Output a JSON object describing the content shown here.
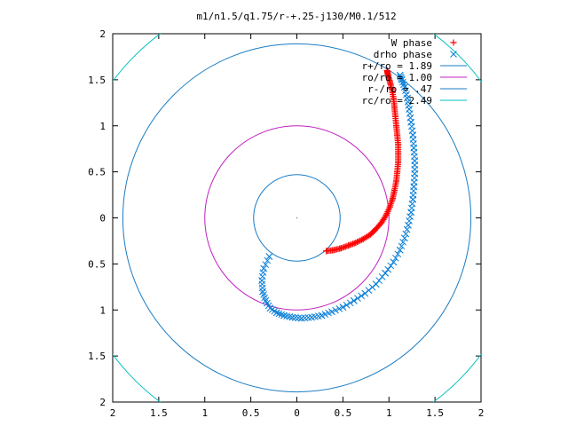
{
  "chart_data": {
    "type": "scatter",
    "title": "m1/n1.5/q1.75/r-+.25-j130/M0.1/512",
    "xlim": [
      -2,
      2
    ],
    "ylim": [
      -2,
      2
    ],
    "x_ticks": [
      -2,
      -1.5,
      -1,
      -0.5,
      0,
      0.5,
      1,
      1.5,
      2
    ],
    "y_ticks": [
      -2,
      -1.5,
      -1,
      -0.5,
      0,
      0.5,
      1,
      1.5,
      2
    ],
    "x_tick_labels": [
      "2",
      "1.5",
      "1",
      "0.5",
      "0",
      "0.5",
      "1",
      "1.5",
      "2"
    ],
    "y_tick_labels": [
      "2",
      "1.5",
      "1",
      "0.5",
      "0",
      "0.5",
      "1",
      "1.5",
      "2"
    ],
    "grid": false,
    "legend_position": "top-right",
    "series": [
      {
        "name": "W phase",
        "kind": "points",
        "marker": "plus",
        "color": "#ff0000",
        "x": [
          0.32,
          0.4,
          0.48,
          0.56,
          0.64,
          0.72,
          0.8,
          0.86,
          0.92,
          0.97,
          1.01,
          1.04,
          1.06,
          1.08,
          1.09,
          1.1,
          1.1,
          1.1,
          1.09,
          1.08,
          1.07,
          1.06,
          1.05,
          1.03,
          1.01,
          0.99,
          0.98
        ],
        "y": [
          -0.36,
          -0.35,
          -0.33,
          -0.3,
          -0.27,
          -0.23,
          -0.18,
          -0.12,
          -0.05,
          0.03,
          0.12,
          0.21,
          0.3,
          0.4,
          0.5,
          0.6,
          0.7,
          0.8,
          0.9,
          1.0,
          1.1,
          1.2,
          1.3,
          1.4,
          1.48,
          1.55,
          1.6
        ]
      },
      {
        "name": "drho phase",
        "kind": "points",
        "marker": "x",
        "color": "#0a7fd8",
        "x": [
          -0.3,
          -0.36,
          -0.38,
          -0.37,
          -0.34,
          -0.29,
          -0.22,
          -0.14,
          -0.05,
          0.05,
          0.16,
          0.27,
          0.38,
          0.5,
          0.62,
          0.74,
          0.86,
          0.96,
          1.05,
          1.12,
          1.17,
          1.21,
          1.24,
          1.26,
          1.27,
          1.28,
          1.28,
          1.27,
          1.26,
          1.24,
          1.22,
          1.2,
          1.17,
          1.14,
          1.12
        ],
        "y": [
          -0.42,
          -0.55,
          -0.68,
          -0.8,
          -0.9,
          -0.98,
          -1.03,
          -1.06,
          -1.08,
          -1.09,
          -1.08,
          -1.06,
          -1.02,
          -0.97,
          -0.9,
          -0.82,
          -0.72,
          -0.6,
          -0.48,
          -0.35,
          -0.22,
          -0.08,
          0.06,
          0.2,
          0.34,
          0.48,
          0.62,
          0.76,
          0.9,
          1.04,
          1.18,
          1.3,
          1.42,
          1.5,
          1.55
        ]
      },
      {
        "name": "r+/ro = 1.89",
        "kind": "circle",
        "radius": 1.89,
        "color": "#1a7cc4"
      },
      {
        "name": "ro/ro = 1.00",
        "kind": "circle",
        "radius": 1.0,
        "color": "#c020c0"
      },
      {
        "name": "r-/ro = .47",
        "kind": "circle",
        "radius": 0.47,
        "color": "#1a7cc4"
      },
      {
        "name": "rc/ro = 2.49",
        "kind": "circle",
        "radius": 2.49,
        "color": "#00c0c0"
      }
    ]
  }
}
